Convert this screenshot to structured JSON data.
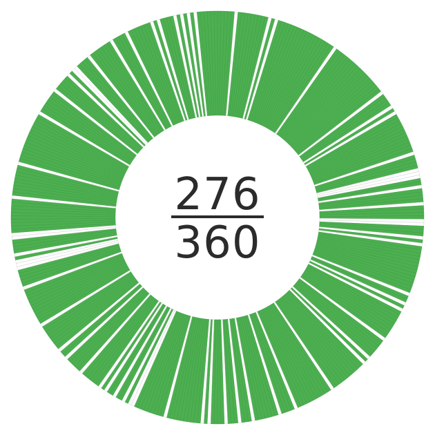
{
  "chart_data": {
    "type": "pie",
    "subtype": "donut-progress",
    "total": 360,
    "completed": 276,
    "numerator_label": "276",
    "denominator_label": "360",
    "colors": {
      "completed": "#4caf50",
      "completed_edge": "#3f9c43",
      "remaining": "#ffffff",
      "remaining_edge": "#c8c8c8"
    },
    "segments": [
      1,
      1,
      1,
      1,
      1,
      0,
      1,
      1,
      1,
      1,
      1,
      1,
      1,
      1,
      1,
      0,
      1,
      0,
      1,
      1,
      1,
      1,
      1,
      1,
      1,
      1,
      1,
      1,
      1,
      1,
      1,
      1,
      1,
      1,
      1,
      1,
      0,
      1,
      1,
      1,
      1,
      1,
      1,
      1,
      1,
      1,
      1,
      1,
      1,
      1,
      1,
      1,
      1,
      1,
      1,
      0,
      1,
      1,
      1,
      1,
      0,
      1,
      0,
      1,
      1,
      1,
      1,
      1,
      1,
      1,
      1,
      1,
      1,
      1,
      1,
      0,
      1,
      1,
      1,
      1,
      0,
      0,
      0,
      1,
      1,
      0,
      1,
      1,
      1,
      1,
      0,
      1,
      1,
      1,
      1,
      0,
      0,
      1,
      1,
      1,
      0,
      1,
      0,
      1,
      1,
      1,
      1,
      1,
      1,
      1,
      1,
      1,
      1,
      1,
      1,
      1,
      1,
      0,
      1,
      1,
      0,
      1,
      0,
      1,
      1,
      1,
      1,
      1,
      1,
      1,
      1,
      1,
      0,
      1,
      1,
      1,
      1,
      1,
      1,
      0,
      1,
      0,
      1,
      1,
      1,
      1,
      1,
      1,
      1,
      1,
      1,
      1,
      1,
      0,
      1,
      1,
      1,
      1,
      1,
      1,
      1,
      1,
      1,
      1,
      1,
      0,
      1,
      1,
      1,
      1,
      0,
      1,
      1,
      1,
      1,
      1,
      1,
      1,
      0,
      1,
      1,
      1,
      0,
      1,
      1,
      1,
      0,
      1,
      1,
      1,
      1,
      0,
      1,
      0,
      1,
      1,
      1,
      1,
      1,
      1,
      1,
      1,
      1,
      1,
      0,
      1,
      1,
      1,
      1,
      1,
      1,
      1,
      1,
      1,
      0,
      0,
      1,
      0,
      1,
      1,
      0,
      1,
      1,
      0,
      1,
      0,
      1,
      1,
      1,
      1,
      1,
      1,
      0,
      1,
      1,
      1,
      1,
      1,
      0,
      1,
      1,
      0,
      1,
      1,
      1,
      1,
      1,
      1,
      1,
      1,
      0,
      1,
      1,
      1,
      1,
      1,
      1,
      1,
      1,
      1,
      1,
      1,
      0,
      1,
      1,
      1,
      1,
      1,
      0,
      0,
      0,
      1,
      0,
      1,
      1,
      1,
      1,
      0,
      0,
      1,
      1,
      1,
      1,
      1,
      1,
      1,
      1,
      1,
      1,
      0,
      1,
      1,
      1,
      1,
      1,
      1,
      1,
      1,
      1,
      0,
      1,
      1,
      1,
      1,
      1,
      1,
      1,
      1,
      1,
      1,
      1,
      1,
      1,
      1,
      1,
      0,
      1,
      1,
      1,
      1,
      1,
      1,
      1,
      0,
      1,
      1,
      1,
      1,
      1,
      0,
      1,
      0,
      0,
      1,
      1,
      1,
      1,
      0,
      1,
      1,
      1,
      1,
      1,
      1,
      1,
      0,
      1,
      1,
      1,
      1,
      0,
      1,
      1,
      1,
      1,
      1,
      1,
      1,
      0,
      1,
      0,
      1,
      1,
      1,
      1,
      0,
      1,
      0,
      1,
      0,
      1,
      0,
      1,
      1,
      1,
      1,
      1,
      1
    ]
  }
}
